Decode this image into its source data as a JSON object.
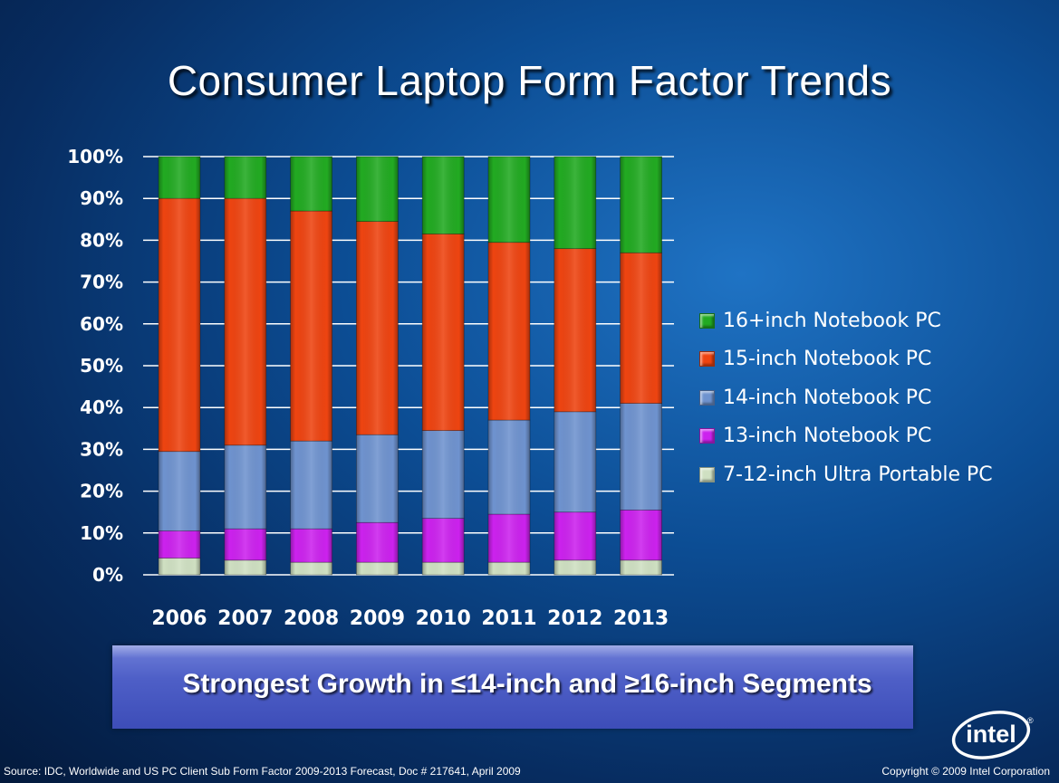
{
  "slide": {
    "title": "Consumer Laptop Form Factor Trends",
    "banner": "Strongest Growth in ≤14-inch and ≥16-inch  Segments",
    "source": "Source: IDC, Worldwide and US PC Client Sub Form Factor 2009-2013 Forecast, Doc # 217641, April 2009",
    "copyright": "Copyright © 2009 Intel Corporation",
    "logo_text": "intel",
    "logo_mark": "®"
  },
  "chart_data": {
    "type": "bar",
    "stacked": true,
    "percent_stacked": true,
    "title": "Consumer Laptop Form Factor Trends",
    "xlabel": "",
    "ylabel": "",
    "ylim": [
      0,
      100
    ],
    "y_ticks": [
      "0%",
      "10%",
      "20%",
      "30%",
      "40%",
      "50%",
      "60%",
      "70%",
      "80%",
      "90%",
      "100%"
    ],
    "grid": true,
    "legend_position": "right",
    "categories": [
      "2006",
      "2007",
      "2008",
      "2009",
      "2010",
      "2011",
      "2012",
      "2013"
    ],
    "series": [
      {
        "name": "7-12-inch Ultra Portable PC",
        "color": "#cfe0c2",
        "values": [
          4,
          3.5,
          3,
          3,
          3,
          3,
          3.5,
          3.5
        ]
      },
      {
        "name": "13-inch Notebook PC",
        "color": "#cc22ee",
        "values": [
          6.5,
          7.5,
          8,
          9.5,
          10.5,
          11.5,
          11.5,
          12
        ]
      },
      {
        "name": "14-inch Notebook PC",
        "color": "#6f93cf",
        "values": [
          19,
          20,
          21,
          21,
          21,
          22.5,
          24,
          25.5
        ]
      },
      {
        "name": "15-inch Notebook PC",
        "color": "#ee4411",
        "values": [
          60.5,
          59,
          55,
          51,
          47,
          42.5,
          39,
          36
        ]
      },
      {
        "name": "16+inch Notebook PC",
        "color": "#22aa22",
        "values": [
          10,
          10,
          13,
          15.5,
          18.5,
          20.5,
          22,
          23
        ]
      }
    ]
  }
}
